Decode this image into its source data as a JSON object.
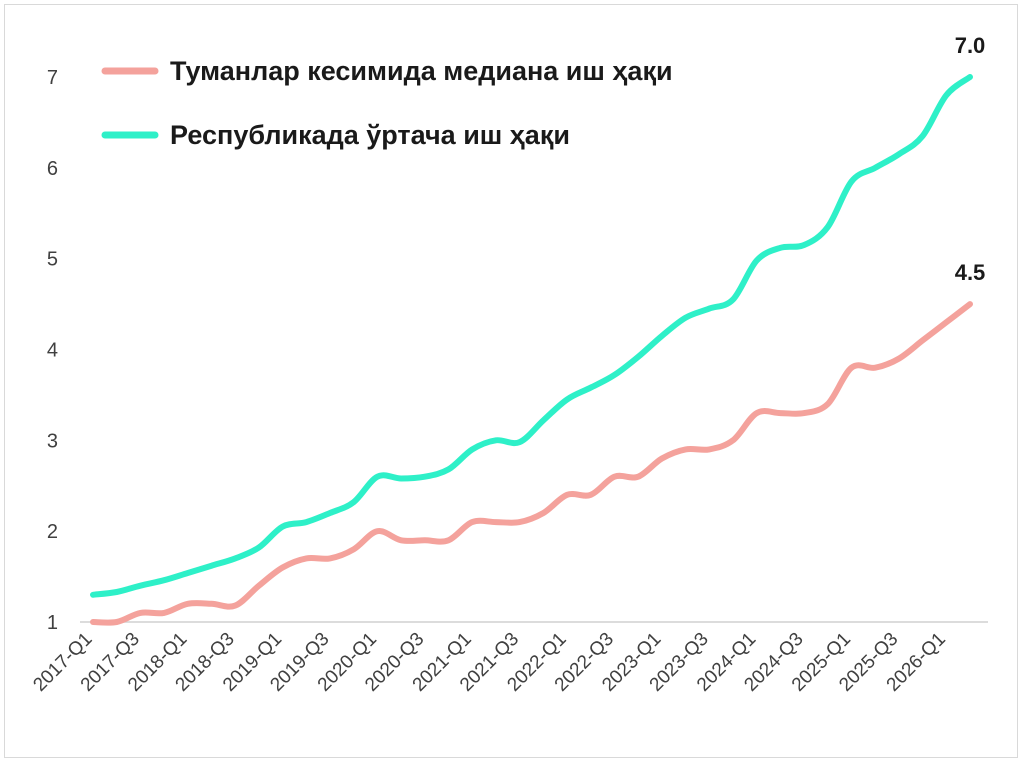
{
  "chart_data": {
    "type": "line",
    "title": "",
    "xlabel": "",
    "ylabel": "",
    "ylim": [
      1,
      7
    ],
    "yticks": [
      1,
      2,
      3,
      4,
      5,
      6,
      7
    ],
    "grid": false,
    "legend_position": "top-left",
    "x": [
      "2017-Q1",
      "2017-Q2",
      "2017-Q3",
      "2017-Q4",
      "2018-Q1",
      "2018-Q2",
      "2018-Q3",
      "2018-Q4",
      "2019-Q1",
      "2019-Q2",
      "2019-Q3",
      "2019-Q4",
      "2020-Q1",
      "2020-Q2",
      "2020-Q3",
      "2020-Q4",
      "2021-Q1",
      "2021-Q2",
      "2021-Q3",
      "2021-Q4",
      "2022-Q1",
      "2022-Q2",
      "2022-Q3",
      "2022-Q4",
      "2023-Q1",
      "2023-Q2",
      "2023-Q3",
      "2023-Q4",
      "2024-Q1",
      "2024-Q2",
      "2024-Q3",
      "2024-Q4",
      "2025-Q1",
      "2025-Q2",
      "2025-Q3",
      "2025-Q4",
      "2026-Q1",
      "2026-Q2"
    ],
    "x_tick_labels": [
      "2017-Q1",
      "2017-Q3",
      "2018-Q1",
      "2018-Q3",
      "2019-Q1",
      "2019-Q3",
      "2020-Q1",
      "2020-Q3",
      "2021-Q1",
      "2021-Q3",
      "2022-Q1",
      "2022-Q3",
      "2023-Q1",
      "2023-Q3",
      "2024-Q1",
      "2024-Q3",
      "2025-Q1",
      "2025-Q3",
      "2026-Q1"
    ],
    "series": [
      {
        "name": "Туманлар кесимида медиана иш ҳақи",
        "color": "#f4a29c",
        "values": [
          1.0,
          1.0,
          1.1,
          1.1,
          1.2,
          1.2,
          1.18,
          1.4,
          1.6,
          1.7,
          1.7,
          1.8,
          2.0,
          1.9,
          1.9,
          1.9,
          2.1,
          2.1,
          2.1,
          2.2,
          2.4,
          2.4,
          2.6,
          2.6,
          2.8,
          2.9,
          2.9,
          3.0,
          3.3,
          3.3,
          3.3,
          3.4,
          3.8,
          3.8,
          3.9,
          4.1,
          4.3,
          4.5
        ]
      },
      {
        "name": "Республикада ўртача иш ҳақи",
        "color": "#2ef0c8",
        "values": [
          1.3,
          1.33,
          1.4,
          1.46,
          1.54,
          1.62,
          1.7,
          1.82,
          2.05,
          2.1,
          2.2,
          2.32,
          2.6,
          2.58,
          2.6,
          2.68,
          2.9,
          3.0,
          2.98,
          3.22,
          3.45,
          3.58,
          3.72,
          3.92,
          4.15,
          4.35,
          4.45,
          4.55,
          4.98,
          5.12,
          5.15,
          5.35,
          5.85,
          6.0,
          6.15,
          6.35,
          6.8,
          7.0
        ]
      }
    ],
    "end_labels": [
      "4.5",
      "7.0"
    ]
  }
}
